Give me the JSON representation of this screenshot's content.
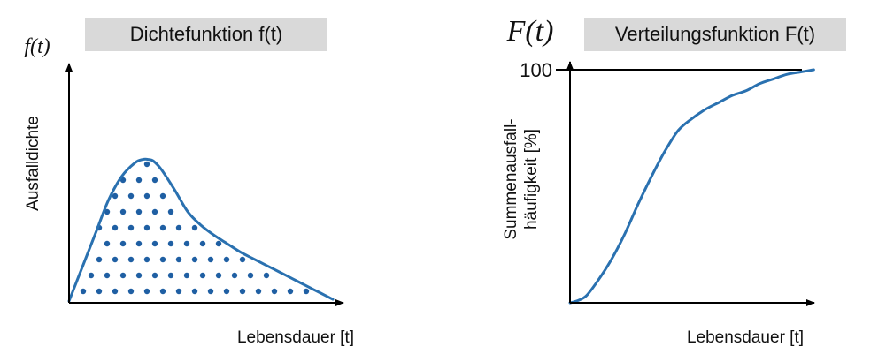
{
  "colors": {
    "curve": "#2a71b0",
    "dots": "#1f5fa3",
    "axis": "#000000",
    "title_box": "#d9d9d9"
  },
  "chart_data": [
    {
      "type": "area",
      "title": "Dichtefunktion f(t)",
      "function_label": "f(t)",
      "xlabel": "Lebensdauer [t]",
      "ylabel": "Ausfalldichte",
      "fill": "dotted",
      "xlim": [
        0,
        100
      ],
      "ylim": [
        0,
        100
      ],
      "series": [
        {
          "name": "f(t)",
          "x": [
            0,
            5,
            10,
            15,
            20,
            25,
            28,
            30,
            32,
            35,
            40,
            45,
            50,
            55,
            60,
            65,
            70,
            75,
            80,
            85,
            90,
            95,
            100
          ],
          "y": [
            0,
            20,
            40,
            60,
            74,
            82,
            84,
            84,
            83,
            78,
            66,
            53,
            45,
            39,
            34,
            29,
            25,
            21,
            17,
            13,
            9,
            5,
            1
          ]
        }
      ]
    },
    {
      "type": "line",
      "title": "Verteilungsfunktion F(t)",
      "function_label": "F(t)",
      "xlabel": "Lebensdauer [t]",
      "ylabel": [
        "Summenausfall-",
        "häufigkeit [%]"
      ],
      "ytick_labels": [
        "100"
      ],
      "xlim": [
        0,
        100
      ],
      "ylim": [
        0,
        100
      ],
      "reference_line_y": 100,
      "series": [
        {
          "name": "F(t)",
          "x": [
            0,
            3,
            6,
            10,
            15,
            20,
            25,
            30,
            35,
            40,
            45,
            50,
            55,
            60,
            65,
            70,
            75,
            80,
            85,
            90
          ],
          "y": [
            0,
            1,
            3,
            9,
            18,
            29,
            42,
            54,
            65,
            74,
            79,
            83,
            86,
            89,
            91,
            94,
            96,
            98,
            99,
            100
          ]
        }
      ]
    }
  ]
}
